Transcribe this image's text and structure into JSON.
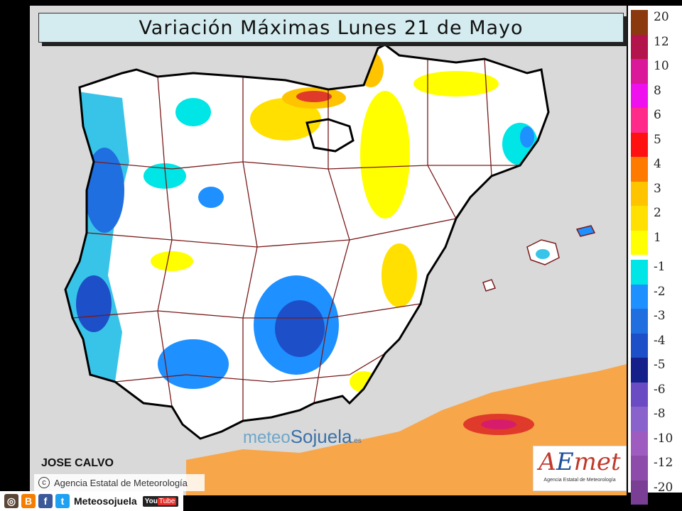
{
  "title": "Variación Máximas  Lunes 21 de Mayo",
  "legend": {
    "title_hidden": "",
    "positive": [
      {
        "label": "20",
        "color": "#8b3a0f"
      },
      {
        "label": "12",
        "color": "#b2144b"
      },
      {
        "label": "10",
        "color": "#d9199a"
      },
      {
        "label": "8",
        "color": "#ee11ee"
      },
      {
        "label": "6",
        "color": "#ff2a8a"
      },
      {
        "label": "5",
        "color": "#ff1111"
      },
      {
        "label": "4",
        "color": "#ff7a00"
      },
      {
        "label": "3",
        "color": "#ffc400"
      },
      {
        "label": "2",
        "color": "#ffe000"
      },
      {
        "label": "1",
        "color": "#ffff00"
      }
    ],
    "negative": [
      {
        "label": "-1",
        "color": "#00e5e5"
      },
      {
        "label": "-2",
        "color": "#1e90ff"
      },
      {
        "label": "-3",
        "color": "#1f6fe0"
      },
      {
        "label": "-4",
        "color": "#1d4fc8"
      },
      {
        "label": "-5",
        "color": "#16208a"
      },
      {
        "label": "-6",
        "color": "#6a4bc4"
      },
      {
        "label": "-8",
        "color": "#8a62cc"
      },
      {
        "label": "-10",
        "color": "#9e5cc0"
      },
      {
        "label": "-12",
        "color": "#8e4caa"
      },
      {
        "label": "-20",
        "color": "#7a3f94"
      }
    ]
  },
  "colors": {
    "land": "#ffffff",
    "sea": "#d9d9d9",
    "border": "#7a1a1a",
    "coast": "#000000"
  },
  "author": "JOSE CALVO",
  "agency_credit": "Agencia Estatal de Meteorología",
  "aemet_logo": {
    "text_a": "A",
    "text_e": "E",
    "text_met": "met",
    "subtitle": "Agencia Estatal de Meteorología"
  },
  "watermark": {
    "part1": "meteo",
    "part2": "Sojuela",
    "suffix": ".es"
  },
  "footer": {
    "handle": "Meteosojuela",
    "youtube": "You",
    "youtube2": "Tube",
    "icons": [
      "camera-icon",
      "blogger-icon",
      "facebook-icon",
      "twitter-icon"
    ]
  }
}
